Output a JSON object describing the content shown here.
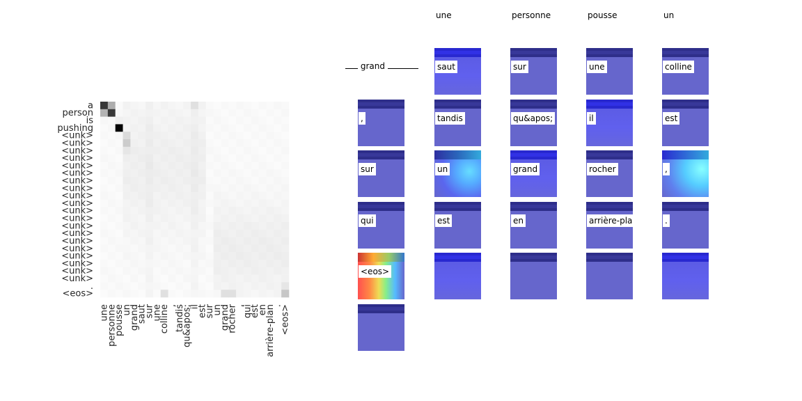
{
  "heatmap": {
    "y_labels": [
      "a",
      "person",
      "is",
      "pushing",
      "<unk>",
      "<unk>",
      "<unk>",
      "<unk>",
      "<unk>",
      "<unk>",
      "<unk>",
      "<unk>",
      "<unk>",
      "<unk>",
      "<unk>",
      "<unk>",
      "<unk>",
      "<unk>",
      "<unk>",
      "<unk>",
      "<unk>",
      "<unk>",
      "<unk>",
      "<unk>",
      ".",
      "<eos>"
    ],
    "x_labels": [
      "une",
      "personne",
      "pousse",
      "un",
      "grand",
      "saut",
      "sur",
      "une",
      "colline",
      ",",
      "tandis",
      "qu&apos;",
      "il",
      "est",
      "sur",
      "un",
      "grand",
      "rocher",
      ",",
      "qui",
      "est",
      "en",
      "arrière-plan",
      ".",
      "<eos>"
    ]
  },
  "source_blank": {
    "word": "grand"
  },
  "header_words": [
    "une",
    "personne",
    "pousse",
    "un"
  ],
  "tiles": [
    {
      "label": "saut",
      "style": "t-bright"
    },
    {
      "label": "sur",
      "style": "t-base"
    },
    {
      "label": "une",
      "style": "t-base"
    },
    {
      "label": "colline",
      "style": "t-base"
    },
    {
      "label": ",",
      "style": "t-base"
    },
    {
      "label": "tandis",
      "style": "t-base"
    },
    {
      "label": "qu&apos;",
      "style": "t-base"
    },
    {
      "label": "il",
      "style": "t-bright"
    },
    {
      "label": "est",
      "style": "t-base"
    },
    {
      "label": "sur",
      "style": "t-base"
    },
    {
      "label": "un",
      "style": "t-cyan"
    },
    {
      "label": "grand",
      "style": "t-bright"
    },
    {
      "label": "rocher",
      "style": "t-base"
    },
    {
      "label": ",",
      "style": "t-cyan2"
    },
    {
      "label": "qui",
      "style": "t-base"
    },
    {
      "label": "est",
      "style": "t-base"
    },
    {
      "label": "en",
      "style": "t-base"
    },
    {
      "label": "arrière-plan",
      "style": "t-base"
    },
    {
      "label": ".",
      "style": "t-base"
    },
    {
      "label": "<eos>",
      "style": "t-eos"
    },
    {
      "label": "",
      "style": "t-bright"
    },
    {
      "label": "",
      "style": "t-base"
    },
    {
      "label": "",
      "style": "t-base"
    },
    {
      "label": "",
      "style": "t-bright"
    },
    {
      "label": "",
      "style": "t-base"
    }
  ]
}
